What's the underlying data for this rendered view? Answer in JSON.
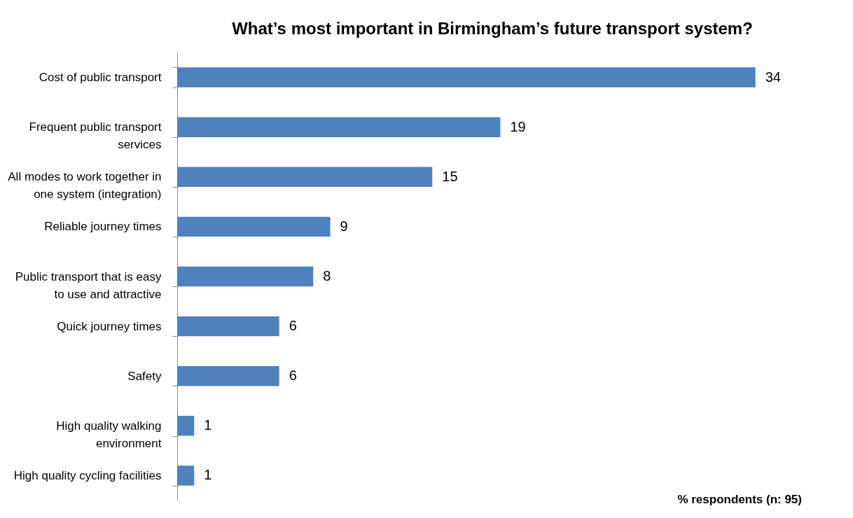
{
  "chart_data": {
    "type": "bar",
    "orientation": "horizontal",
    "title": "What’s most important in Birmingham’s future transport system?",
    "categories": [
      "Cost of public transport",
      "Frequent public transport services",
      "All modes to work together in one system (integration)",
      "Reliable journey times",
      "Public transport that is easy to use and attractive",
      "Quick journey times",
      "Safety",
      "High quality walking environment",
      "High quality cycling facilities"
    ],
    "values": [
      34,
      19,
      15,
      9,
      8,
      6,
      6,
      1,
      1
    ],
    "color": "#4f81bd",
    "data_labels": true,
    "annotations": [
      "% respondents (n: 95)"
    ]
  }
}
